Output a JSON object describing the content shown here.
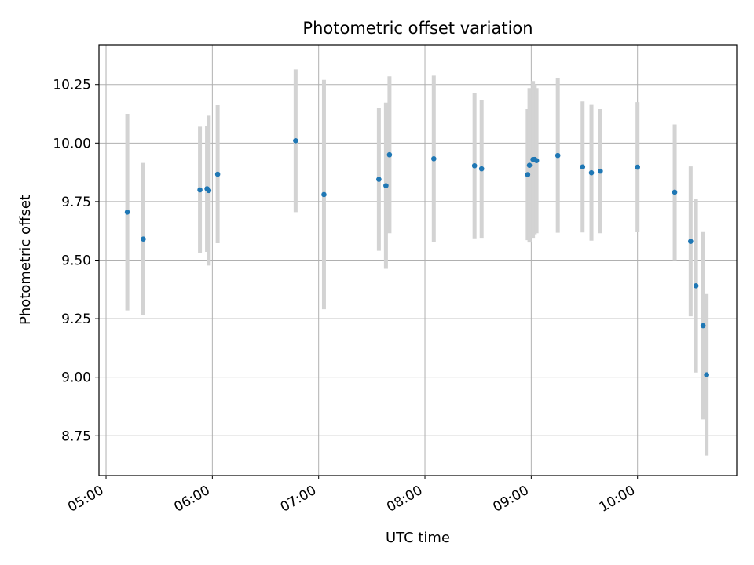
{
  "chart_data": {
    "type": "scatter",
    "title": "Photometric offset variation",
    "xlabel": "UTC time",
    "ylabel": "Photometric offset",
    "x_is_time": true,
    "xlim": [
      "04:56",
      "10:56"
    ],
    "ylim": [
      8.58,
      10.42
    ],
    "grid": true,
    "x_ticks": [
      "05:00",
      "06:00",
      "07:00",
      "08:00",
      "09:00",
      "10:00"
    ],
    "y_ticks": [
      "8.75",
      "9.00",
      "9.25",
      "9.50",
      "9.75",
      "10.00",
      "10.25"
    ],
    "point_color": "#1f77b4",
    "errorbar_color": "#d3d3d3",
    "points": [
      {
        "x": "05:12",
        "y": 9.705,
        "err": 0.42
      },
      {
        "x": "05:21",
        "y": 9.59,
        "err": 0.325
      },
      {
        "x": "05:53",
        "y": 9.8,
        "err": 0.27
      },
      {
        "x": "05:57",
        "y": 9.805,
        "err": 0.27
      },
      {
        "x": "05:58",
        "y": 9.797,
        "err": 0.32
      },
      {
        "x": "06:03",
        "y": 9.867,
        "err": 0.295
      },
      {
        "x": "06:47",
        "y": 10.01,
        "err": 0.305
      },
      {
        "x": "07:03",
        "y": 9.78,
        "err": 0.49
      },
      {
        "x": "07:34",
        "y": 9.845,
        "err": 0.305
      },
      {
        "x": "07:38",
        "y": 9.818,
        "err": 0.355
      },
      {
        "x": "07:40",
        "y": 9.95,
        "err": 0.335
      },
      {
        "x": "08:05",
        "y": 9.933,
        "err": 0.355
      },
      {
        "x": "08:28",
        "y": 9.903,
        "err": 0.31
      },
      {
        "x": "08:32",
        "y": 9.89,
        "err": 0.295
      },
      {
        "x": "08:58",
        "y": 9.865,
        "err": 0.28
      },
      {
        "x": "08:59",
        "y": 9.905,
        "err": 0.33
      },
      {
        "x": "09:01",
        "y": 9.93,
        "err": 0.335
      },
      {
        "x": "09:02",
        "y": 9.93,
        "err": 0.32
      },
      {
        "x": "09:03",
        "y": 9.925,
        "err": 0.31
      },
      {
        "x": "09:15",
        "y": 9.947,
        "err": 0.33
      },
      {
        "x": "09:29",
        "y": 9.898,
        "err": 0.28
      },
      {
        "x": "09:34",
        "y": 9.873,
        "err": 0.29
      },
      {
        "x": "09:39",
        "y": 9.88,
        "err": 0.265
      },
      {
        "x": "10:00",
        "y": 9.897,
        "err": 0.278
      },
      {
        "x": "10:21",
        "y": 9.79,
        "err": 0.29
      },
      {
        "x": "10:30",
        "y": 9.58,
        "err": 0.32
      },
      {
        "x": "10:33",
        "y": 9.39,
        "err": 0.37
      },
      {
        "x": "10:37",
        "y": 9.22,
        "err": 0.4
      },
      {
        "x": "10:39",
        "y": 9.01,
        "err": 0.345
      }
    ]
  }
}
